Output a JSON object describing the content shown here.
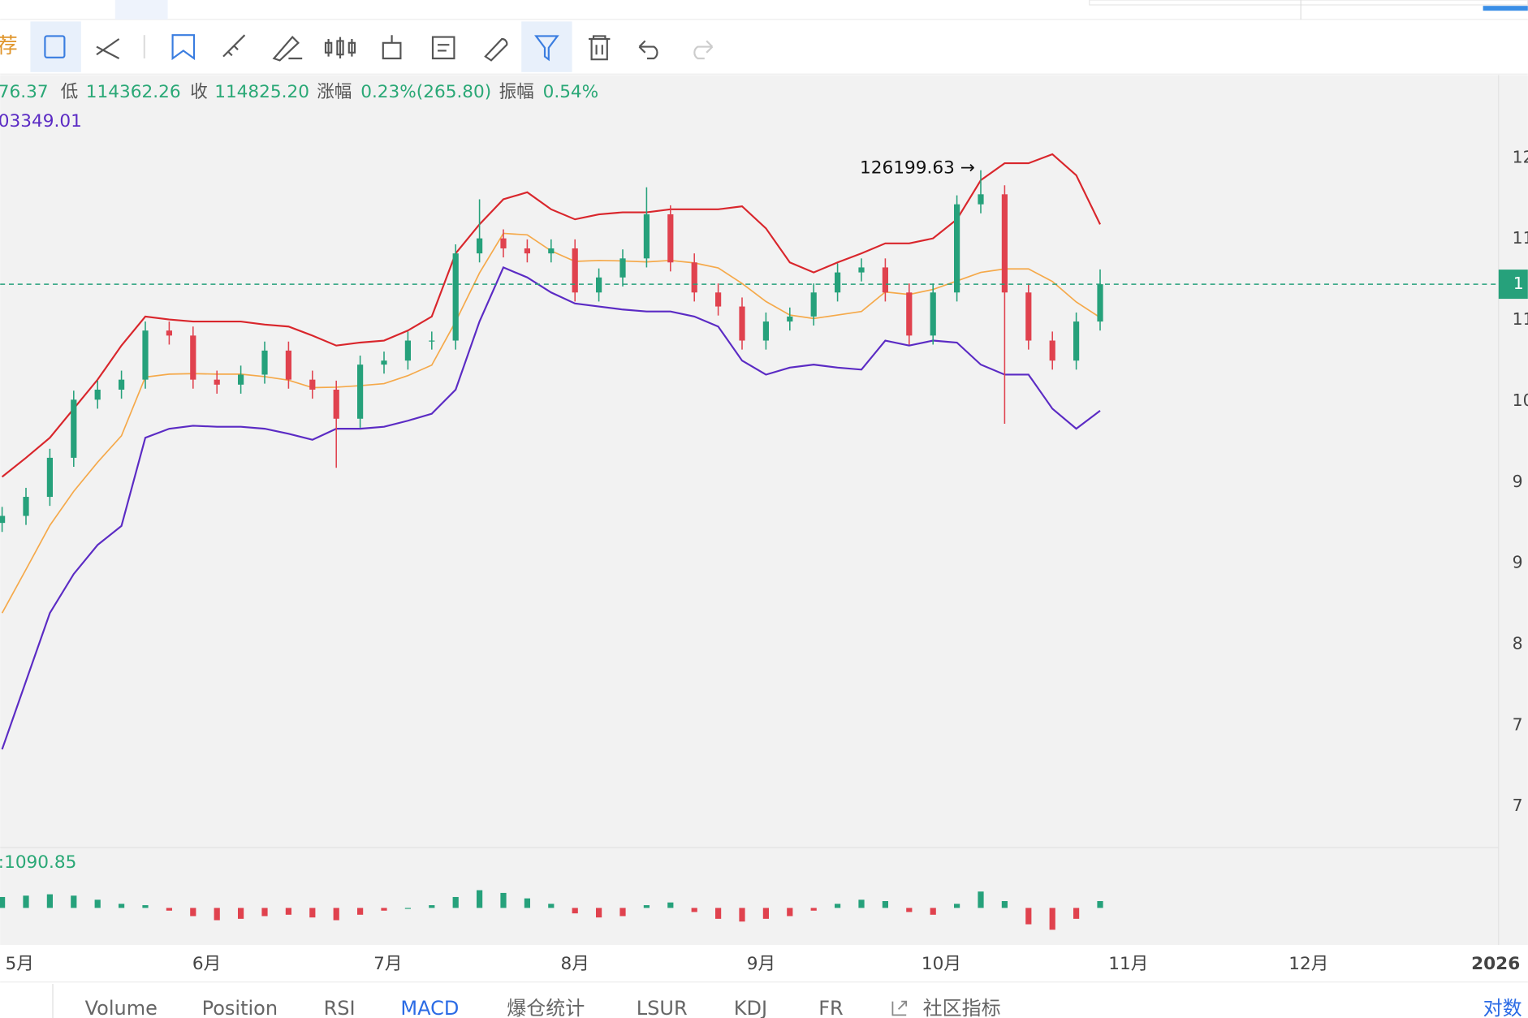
{
  "toolbar": {
    "first": "荐"
  },
  "info": {
    "high_tail": "76.37",
    "low_label": "低",
    "low": "114362.26",
    "close_label": "收",
    "close": "114825.20",
    "change_label": "涨幅",
    "change": "0.23%(265.80)",
    "amplitude_label": "振幅",
    "amplitude": "0.54%"
  },
  "indicator_value": "03349.01",
  "chart_data": {
    "type": "candlestick",
    "annotation": "126199.63 →",
    "ylim": [
      58600,
      135900
    ],
    "y_axis_labels": [
      "12",
      "11",
      "11",
      "10",
      "9",
      "9",
      "8",
      "7",
      "7"
    ],
    "price_tag": "1",
    "months": [
      "5月",
      "6月",
      "7月",
      "8月",
      "9月",
      "10月",
      "11月",
      "12月",
      "2026"
    ],
    "up_color": "#26a17b",
    "down_color": "#e0424e",
    "open": [
      91000,
      91700,
      93600,
      97500,
      103300,
      104300,
      105300,
      110200,
      109700,
      105300,
      104800,
      105800,
      108200,
      105300,
      104300,
      101400,
      106800,
      107200,
      109200,
      109200,
      117900,
      119400,
      118400,
      117900,
      118400,
      114000,
      115500,
      117400,
      121800,
      117000,
      114000,
      112600,
      109200,
      111100,
      111600,
      114000,
      116000,
      116500,
      114000,
      109700,
      114000,
      122800,
      123800,
      114000,
      109200,
      107200,
      111100
    ],
    "high": [
      92600,
      94500,
      98400,
      104200,
      105200,
      106200,
      111100,
      111100,
      110600,
      106200,
      106700,
      109100,
      109100,
      106200,
      105200,
      107700,
      108100,
      110100,
      110100,
      118800,
      123300,
      120300,
      119300,
      119300,
      119300,
      116400,
      118300,
      124500,
      122700,
      117900,
      114900,
      113500,
      112000,
      112500,
      114900,
      116900,
      117400,
      117400,
      114900,
      114900,
      123700,
      126200,
      124700,
      114900,
      110100,
      112000,
      116300
    ],
    "low": [
      90100,
      90800,
      92700,
      96600,
      102400,
      103400,
      104400,
      108800,
      104400,
      103900,
      103900,
      104900,
      104400,
      103400,
      96500,
      100500,
      105900,
      106300,
      108300,
      108300,
      117000,
      117500,
      117000,
      117000,
      113100,
      113100,
      114600,
      116500,
      116100,
      113100,
      111700,
      108300,
      108300,
      110200,
      110700,
      113100,
      115100,
      113100,
      108800,
      108800,
      113100,
      121900,
      100900,
      108300,
      106300,
      106300,
      110200
    ],
    "close": [
      91700,
      93600,
      97500,
      103300,
      104300,
      105300,
      110200,
      109700,
      105300,
      104800,
      105800,
      108200,
      105300,
      104300,
      101400,
      106800,
      107200,
      109200,
      109200,
      117900,
      119400,
      118400,
      117900,
      118400,
      114000,
      115500,
      117400,
      121800,
      117000,
      114000,
      112600,
      109200,
      111100,
      111600,
      114000,
      116000,
      116500,
      114000,
      109700,
      114000,
      122800,
      123800,
      114000,
      109200,
      107200,
      111100,
      114825.2
    ],
    "bands": {
      "upper": {
        "color": "#d9262c",
        "values": [
          95600,
          97500,
          99500,
          102400,
          105300,
          108700,
          111600,
          111300,
          111100,
          111100,
          111100,
          110800,
          110600,
          109700,
          108700,
          109000,
          109200,
          110200,
          111600,
          117900,
          120800,
          123300,
          124000,
          122300,
          121300,
          121800,
          122000,
          122000,
          122300,
          122300,
          122300,
          122600,
          120400,
          117000,
          116000,
          117000,
          117900,
          118900,
          118900,
          119400,
          121300,
          125200,
          126900,
          126900,
          127800,
          125700,
          120800
        ]
      },
      "middle": {
        "color": "#f5a94a",
        "values": [
          82000,
          86350,
          90750,
          94150,
          97050,
          99700,
          105550,
          105850,
          105900,
          105850,
          105850,
          105600,
          105250,
          104500,
          104550,
          104700,
          104900,
          105700,
          106750,
          111100,
          115950,
          119900,
          119750,
          118150,
          117100,
          117200,
          117150,
          117050,
          117200,
          116950,
          116450,
          114900,
          113100,
          111750,
          111400,
          111750,
          112100,
          114050,
          113800,
          114300,
          115150,
          116000,
          116350,
          116350,
          115100,
          113050,
          111500
        ]
      },
      "lower": {
        "color": "#5b2bc4",
        "values": [
          68400,
          75200,
          82000,
          85900,
          88800,
          90700,
          99500,
          100400,
          100700,
          100600,
          100600,
          100400,
          99900,
          99300,
          100400,
          100400,
          100600,
          101200,
          101900,
          104300,
          111100,
          116500,
          115500,
          114000,
          112900,
          112600,
          112300,
          112100,
          112100,
          111600,
          110600,
          107200,
          105800,
          106500,
          106800,
          106500,
          106300,
          109200,
          108700,
          109200,
          109000,
          106800,
          105800,
          105800,
          102400,
          100400,
          102200
        ]
      }
    },
    "macd": {
      "label": ":1090.85",
      "histogram": [
        800,
        900,
        1000,
        900,
        600,
        300,
        200,
        -200,
        -600,
        -900,
        -800,
        -600,
        -500,
        -700,
        -900,
        -500,
        -200,
        0,
        200,
        800,
        1300,
        1100,
        700,
        300,
        -400,
        -700,
        -600,
        200,
        400,
        -300,
        -800,
        -1000,
        -800,
        -600,
        -200,
        300,
        600,
        500,
        -300,
        -500,
        300,
        1200,
        500,
        -1200,
        -1600,
        -800,
        500
      ]
    }
  },
  "tabs": [
    "Volume",
    "Position",
    "RSI",
    "MACD",
    "爆仓统计",
    "LSUR",
    "KDJ",
    "FR",
    "社区指标"
  ],
  "log_button": "对数"
}
